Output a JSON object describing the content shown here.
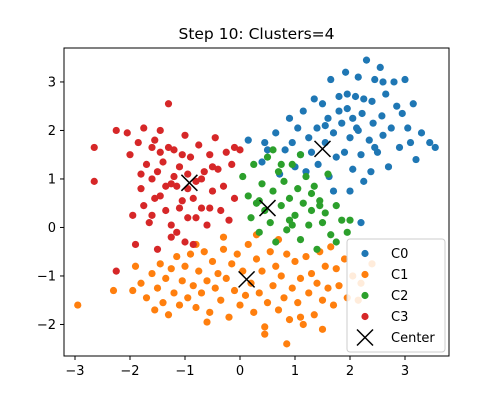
{
  "chart_data": {
    "type": "scatter",
    "title": "Step 10: Clusters=4",
    "xlabel": "",
    "ylabel": "",
    "xlim": [
      -3.2,
      3.8
    ],
    "ylim": [
      -2.65,
      3.7
    ],
    "xticks": [
      -3,
      -2,
      -1,
      0,
      1,
      2,
      3
    ],
    "yticks": [
      -2,
      -1,
      0,
      1,
      2,
      3
    ],
    "grid": false,
    "legend_position": "lower-right",
    "series": [
      {
        "name": "C0",
        "color": "#1f77b4",
        "marker": "circle",
        "points": [
          [
            0.15,
            1.8
          ],
          [
            0.4,
            1.35
          ],
          [
            0.5,
            1.6
          ],
          [
            0.65,
            1.95
          ],
          [
            0.72,
            1.1
          ],
          [
            0.82,
            1.6
          ],
          [
            0.9,
            2.25
          ],
          [
            0.95,
            1.75
          ],
          [
            1.0,
            1.25
          ],
          [
            1.05,
            2.05
          ],
          [
            1.1,
            1.5
          ],
          [
            1.15,
            2.4
          ],
          [
            1.2,
            1.15
          ],
          [
            1.25,
            1.85
          ],
          [
            1.3,
            1.55
          ],
          [
            1.35,
            2.65
          ],
          [
            1.4,
            2.05
          ],
          [
            1.42,
            1.3
          ],
          [
            1.5,
            2.55
          ],
          [
            1.55,
            1.75
          ],
          [
            1.6,
            2.25
          ],
          [
            1.62,
            1.05
          ],
          [
            1.65,
            3.05
          ],
          [
            1.7,
            1.95
          ],
          [
            1.75,
            1.45
          ],
          [
            1.8,
            2.7
          ],
          [
            1.85,
            2.15
          ],
          [
            1.9,
            1.55
          ],
          [
            1.92,
            3.2
          ],
          [
            1.95,
            2.45
          ],
          [
            2.0,
            1.85
          ],
          [
            2.05,
            1.2
          ],
          [
            2.1,
            2.7
          ],
          [
            2.12,
            2.05
          ],
          [
            2.15,
            3.1
          ],
          [
            2.2,
            1.5
          ],
          [
            2.22,
            2.35
          ],
          [
            2.25,
            0.95
          ],
          [
            2.3,
            3.45
          ],
          [
            2.35,
            1.8
          ],
          [
            2.4,
            2.6
          ],
          [
            2.42,
            2.15
          ],
          [
            2.45,
            3.05
          ],
          [
            2.5,
            1.55
          ],
          [
            2.55,
            3.3
          ],
          [
            2.58,
            2.3
          ],
          [
            2.6,
            1.9
          ],
          [
            2.65,
            2.75
          ],
          [
            2.7,
            1.25
          ],
          [
            2.75,
            2.05
          ],
          [
            2.8,
            3.0
          ],
          [
            2.85,
            2.5
          ],
          [
            2.9,
            1.65
          ],
          [
            2.95,
            2.35
          ],
          [
            3.0,
            3.05
          ],
          [
            3.05,
            2.05
          ],
          [
            3.1,
            1.75
          ],
          [
            3.15,
            2.55
          ],
          [
            3.2,
            1.4
          ],
          [
            3.3,
            1.95
          ],
          [
            2.2,
            0.1
          ],
          [
            1.7,
            0.75
          ],
          [
            2.0,
            0.75
          ],
          [
            2.45,
            1.65
          ],
          [
            2.6,
            3.0
          ],
          [
            0.45,
            1.75
          ],
          [
            2.15,
            2.0
          ],
          [
            1.55,
            2.1
          ],
          [
            1.95,
            2.75
          ],
          [
            2.25,
            2.65
          ],
          [
            3.45,
            1.75
          ],
          [
            3.55,
            1.65
          ],
          [
            2.38,
            1.15
          ],
          [
            1.8,
            2.4
          ],
          [
            2.05,
            2.25
          ]
        ]
      },
      {
        "name": "C1",
        "color": "#ff7f0e",
        "marker": "circle",
        "points": [
          [
            -2.95,
            -1.6
          ],
          [
            -2.3,
            -1.3
          ],
          [
            -1.95,
            -1.3
          ],
          [
            -1.8,
            -1.15
          ],
          [
            -1.7,
            -1.45
          ],
          [
            -1.6,
            -0.95
          ],
          [
            -1.55,
            -1.7
          ],
          [
            -1.5,
            -1.25
          ],
          [
            -1.45,
            -0.75
          ],
          [
            -1.4,
            -1.55
          ],
          [
            -1.35,
            -1.05
          ],
          [
            -1.3,
            -1.8
          ],
          [
            -1.25,
            -0.85
          ],
          [
            -1.2,
            -1.35
          ],
          [
            -1.15,
            -0.6
          ],
          [
            -1.1,
            -1.6
          ],
          [
            -1.05,
            -1.1
          ],
          [
            -1.0,
            -0.8
          ],
          [
            -0.95,
            -1.45
          ],
          [
            -0.9,
            -0.55
          ],
          [
            -0.85,
            -1.2
          ],
          [
            -0.8,
            -1.65
          ],
          [
            -0.75,
            -0.9
          ],
          [
            -0.7,
            -1.35
          ],
          [
            -0.65,
            -0.5
          ],
          [
            -0.6,
            -1.1
          ],
          [
            -0.55,
            -1.75
          ],
          [
            -0.5,
            -0.7
          ],
          [
            -0.45,
            -1.25
          ],
          [
            -0.4,
            -0.95
          ],
          [
            -0.35,
            -1.5
          ],
          [
            -0.3,
            -0.45
          ],
          [
            -0.25,
            -1.05
          ],
          [
            -0.2,
            -1.85
          ],
          [
            -0.15,
            -0.75
          ],
          [
            -0.1,
            -1.3
          ],
          [
            -0.05,
            -0.55
          ],
          [
            0.0,
            -1.6
          ],
          [
            0.05,
            -0.9
          ],
          [
            0.1,
            -1.4
          ],
          [
            0.15,
            -0.35
          ],
          [
            0.2,
            -1.15
          ],
          [
            0.25,
            -1.75
          ],
          [
            0.3,
            -0.65
          ],
          [
            0.35,
            -1.35
          ],
          [
            0.4,
            -0.9
          ],
          [
            0.45,
            -2.05
          ],
          [
            0.5,
            -1.55
          ],
          [
            0.55,
            -0.5
          ],
          [
            0.6,
            -1.2
          ],
          [
            0.65,
            -0.8
          ],
          [
            0.7,
            -1.7
          ],
          [
            0.75,
            -1.0
          ],
          [
            0.8,
            -1.45
          ],
          [
            0.85,
            -0.55
          ],
          [
            0.9,
            -1.9
          ],
          [
            0.95,
            -1.25
          ],
          [
            1.0,
            -0.7
          ],
          [
            1.05,
            -1.55
          ],
          [
            1.1,
            -1.05
          ],
          [
            1.15,
            -2.0
          ],
          [
            1.2,
            -0.6
          ],
          [
            1.25,
            -1.35
          ],
          [
            1.3,
            -0.95
          ],
          [
            1.35,
            -1.8
          ],
          [
            1.4,
            -1.15
          ],
          [
            1.45,
            -0.5
          ],
          [
            1.5,
            -1.5
          ],
          [
            1.55,
            -0.8
          ],
          [
            1.6,
            -1.25
          ],
          [
            1.65,
            -0.4
          ],
          [
            1.7,
            -1.6
          ],
          [
            1.75,
            -0.85
          ],
          [
            1.8,
            -1.2
          ],
          [
            1.9,
            -0.65
          ],
          [
            1.95,
            -1.45
          ],
          [
            2.05,
            -1.0
          ],
          [
            2.2,
            -1.15
          ],
          [
            2.4,
            -0.75
          ],
          [
            2.15,
            -1.5
          ],
          [
            0.85,
            -2.4
          ],
          [
            0.45,
            -2.2
          ],
          [
            -0.8,
            -0.35
          ],
          [
            -0.3,
            -0.2
          ],
          [
            0.3,
            -0.15
          ],
          [
            -1.9,
            -0.8
          ],
          [
            -0.6,
            -1.95
          ],
          [
            1.1,
            -1.85
          ],
          [
            0.7,
            -0.25
          ],
          [
            1.5,
            -2.1
          ]
        ]
      },
      {
        "name": "C2",
        "color": "#2ca02c",
        "marker": "circle",
        "points": [
          [
            0.05,
            1.05
          ],
          [
            0.15,
            0.65
          ],
          [
            0.2,
            0.2
          ],
          [
            0.25,
            1.3
          ],
          [
            0.3,
            0.5
          ],
          [
            0.35,
            -0.1
          ],
          [
            0.4,
            0.9
          ],
          [
            0.45,
            0.35
          ],
          [
            0.5,
            1.45
          ],
          [
            0.55,
            0.1
          ],
          [
            0.6,
            0.75
          ],
          [
            0.65,
            -0.3
          ],
          [
            0.7,
            1.15
          ],
          [
            0.75,
            0.45
          ],
          [
            0.8,
            0.95
          ],
          [
            0.85,
            -0.05
          ],
          [
            0.9,
            0.6
          ],
          [
            0.95,
            1.3
          ],
          [
            1.0,
            0.25
          ],
          [
            1.05,
            0.8
          ],
          [
            1.1,
            -0.25
          ],
          [
            1.15,
            0.5
          ],
          [
            1.2,
            1.05
          ],
          [
            1.25,
            0.05
          ],
          [
            1.3,
            0.35
          ],
          [
            1.35,
            0.85
          ],
          [
            1.4,
            -0.45
          ],
          [
            1.45,
            0.55
          ],
          [
            1.5,
            0.1
          ],
          [
            1.55,
            0.3
          ],
          [
            1.6,
            1.1
          ],
          [
            1.65,
            -0.15
          ],
          [
            1.75,
            0.45
          ],
          [
            1.85,
            0.15
          ],
          [
            1.95,
            -0.1
          ],
          [
            0.6,
            1.6
          ],
          [
            1.1,
            1.5
          ],
          [
            0.9,
            0.15
          ],
          [
            1.3,
            0.7
          ],
          [
            0.35,
            0.55
          ],
          [
            2.0,
            0.15
          ],
          [
            1.75,
            -0.3
          ],
          [
            1.45,
            0.45
          ],
          [
            0.95,
            0.05
          ],
          [
            0.75,
            1.3
          ]
        ]
      },
      {
        "name": "C3",
        "color": "#d62728",
        "marker": "circle",
        "points": [
          [
            -2.65,
            1.65
          ],
          [
            -2.65,
            0.95
          ],
          [
            -2.25,
            -0.9
          ],
          [
            -2.25,
            2.0
          ],
          [
            -2.05,
            1.95
          ],
          [
            -2.0,
            1.5
          ],
          [
            -1.95,
            0.25
          ],
          [
            -1.9,
            -0.35
          ],
          [
            -1.85,
            1.75
          ],
          [
            -1.8,
            0.8
          ],
          [
            -1.75,
            2.05
          ],
          [
            -1.7,
            1.3
          ],
          [
            -1.65,
            0.1
          ],
          [
            -1.6,
            1.65
          ],
          [
            -1.55,
            0.6
          ],
          [
            -1.5,
            -0.45
          ],
          [
            -1.45,
            2.0
          ],
          [
            -1.4,
            1.35
          ],
          [
            -1.35,
            0.35
          ],
          [
            -1.3,
            2.55
          ],
          [
            -1.25,
            0.9
          ],
          [
            -1.2,
            1.6
          ],
          [
            -1.15,
            -0.1
          ],
          [
            -1.1,
            1.25
          ],
          [
            -1.05,
            0.55
          ],
          [
            -1.0,
            1.9
          ],
          [
            -0.95,
            0.2
          ],
          [
            -0.9,
            1.45
          ],
          [
            -0.85,
            -0.35
          ],
          [
            -0.8,
            0.95
          ],
          [
            -0.75,
            1.7
          ],
          [
            -0.7,
            0.4
          ],
          [
            -0.65,
            1.15
          ],
          [
            -0.6,
            0.05
          ],
          [
            -0.55,
            1.5
          ],
          [
            -0.5,
            0.75
          ],
          [
            -0.45,
            1.85
          ],
          [
            -0.4,
            1.2
          ],
          [
            -0.35,
            0.35
          ],
          [
            -0.3,
            0.85
          ],
          [
            -0.25,
            1.55
          ],
          [
            -0.2,
            0.15
          ],
          [
            -0.15,
            1.3
          ],
          [
            -0.1,
            0.6
          ],
          [
            -1.6,
            1.0
          ],
          [
            -1.25,
            0.05
          ],
          [
            -0.95,
            0.8
          ],
          [
            -1.45,
            0.65
          ],
          [
            -1.1,
            0.4
          ],
          [
            -1.75,
            0.45
          ],
          [
            -0.7,
            1.0
          ],
          [
            -1.5,
            1.15
          ],
          [
            -1.2,
            1.05
          ],
          [
            -0.85,
            0.6
          ],
          [
            -1.35,
            0.85
          ],
          [
            -0.55,
            0.4
          ],
          [
            -1.05,
            1.5
          ],
          [
            -1.6,
            0.25
          ],
          [
            -1.3,
            1.65
          ],
          [
            -0.95,
            1.1
          ],
          [
            0.0,
            1.6
          ],
          [
            -0.1,
            1.65
          ],
          [
            -1.0,
            -0.3
          ],
          [
            -1.25,
            -0.2
          ],
          [
            -1.8,
            1.1
          ],
          [
            -1.45,
            1.55
          ],
          [
            -0.8,
            0.2
          ],
          [
            -1.15,
            0.85
          ],
          [
            -0.5,
            1.25
          ],
          [
            -1.55,
            1.8
          ]
        ]
      },
      {
        "name": "Center",
        "color": "#000000",
        "marker": "x",
        "points": [
          [
            1.5,
            1.62
          ],
          [
            0.12,
            -1.07
          ],
          [
            0.5,
            0.4
          ],
          [
            -0.92,
            0.92
          ]
        ]
      }
    ]
  }
}
